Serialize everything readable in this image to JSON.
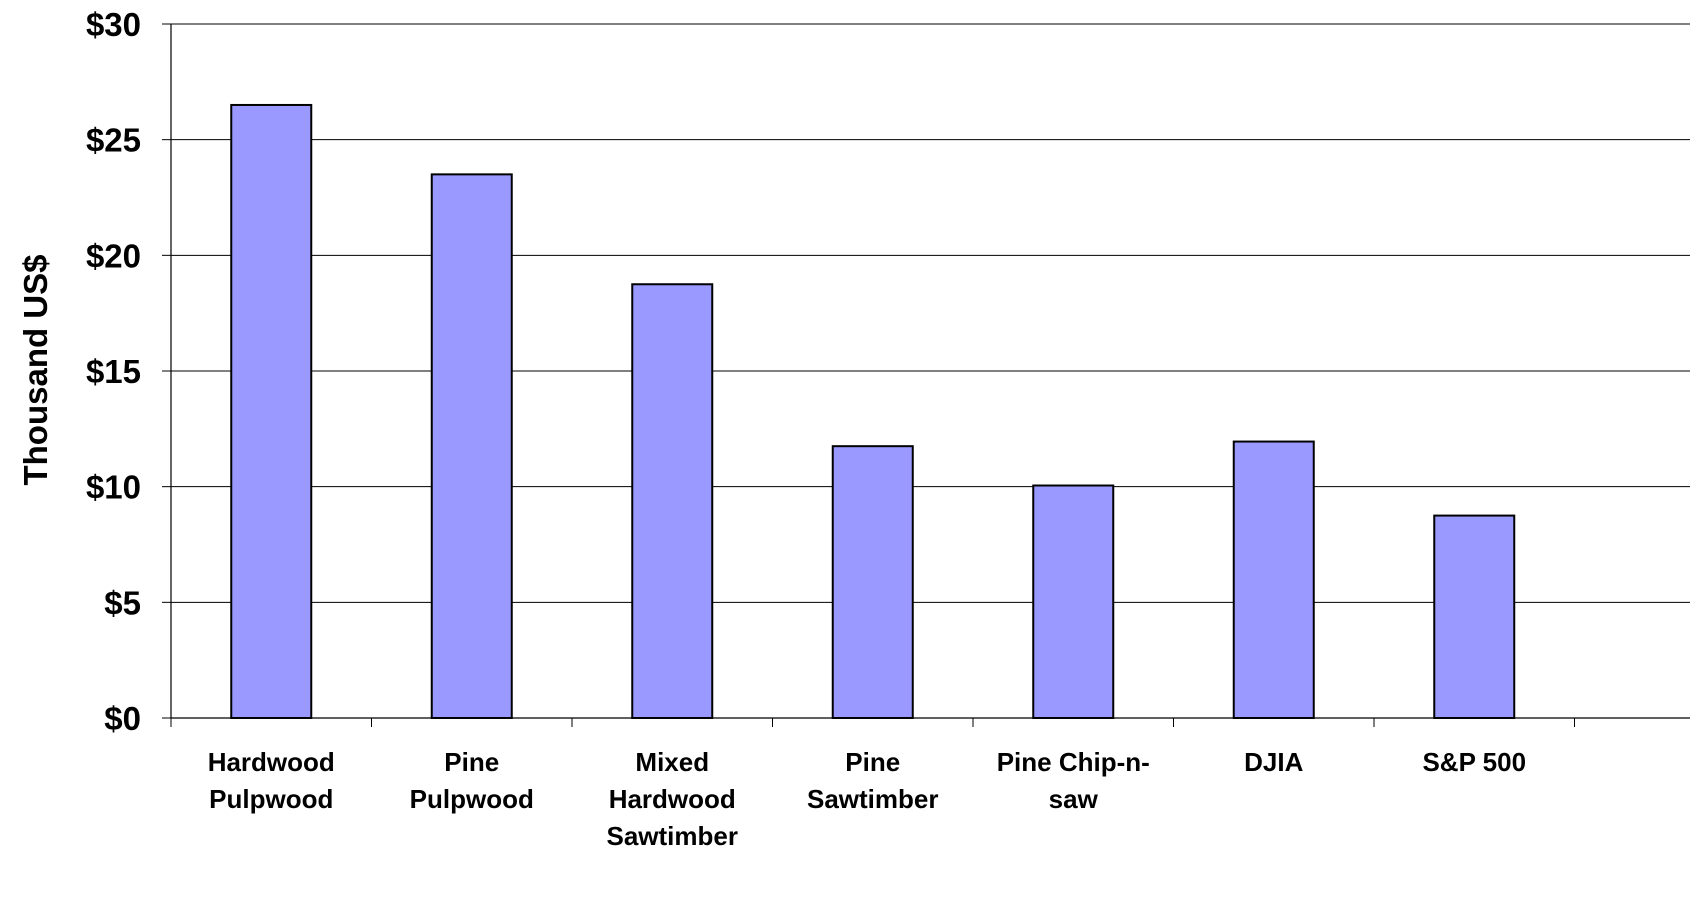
{
  "chart_data": {
    "type": "bar",
    "title": "",
    "xlabel": "",
    "ylabel": "Thousand US$",
    "ylim": [
      0,
      30
    ],
    "yticks": [
      0,
      5,
      10,
      15,
      20,
      25,
      30
    ],
    "ytick_labels": [
      "$0",
      "$5",
      "$10",
      "$15",
      "$20",
      "$25",
      "$30"
    ],
    "grid": true,
    "legend": "none",
    "categories": [
      [
        "Hardwood",
        "Pulpwood"
      ],
      [
        "Pine",
        "Pulpwood"
      ],
      [
        "Mixed",
        "Hardwood",
        "Sawtimber"
      ],
      [
        "Pine",
        "Sawtimber"
      ],
      [
        "Pine Chip-n-",
        "saw"
      ],
      [
        "DJIA"
      ],
      [
        "S&P 500"
      ]
    ],
    "values": [
      26.5,
      23.5,
      18.75,
      11.75,
      10.05,
      11.95,
      8.75
    ],
    "bar_color": "#9999ff",
    "bar_edge_color": "#000000"
  }
}
